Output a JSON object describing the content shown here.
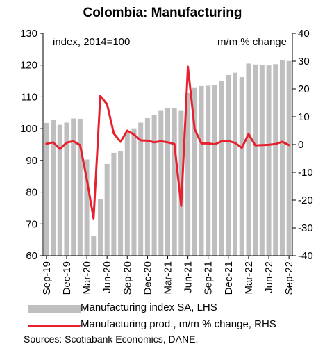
{
  "chart_data": {
    "type": "bar+line",
    "title": "Colombia: Manufacturing",
    "left_axis_label": "index, 2014=100",
    "right_axis_label": "m/m % change",
    "left_ylim": [
      60,
      130
    ],
    "left_ticks": [
      60,
      70,
      80,
      90,
      100,
      110,
      120,
      130
    ],
    "right_ylim": [
      -40,
      40
    ],
    "right_ticks": [
      -40,
      -30,
      -20,
      -10,
      0,
      10,
      20,
      30,
      40
    ],
    "x_tick_labels": [
      "Sep-19",
      "Dec-19",
      "Mar-20",
      "Jun-20",
      "Sep-20",
      "Dec-20",
      "Mar-21",
      "Jun-21",
      "Sep-21",
      "Dec-21",
      "Mar-22",
      "Jun-22",
      "Sep-22"
    ],
    "months": [
      "Sep-19",
      "Oct-19",
      "Nov-19",
      "Dec-19",
      "Jan-20",
      "Feb-20",
      "Mar-20",
      "Apr-20",
      "May-20",
      "Jun-20",
      "Jul-20",
      "Aug-20",
      "Sep-20",
      "Oct-20",
      "Nov-20",
      "Dec-20",
      "Jan-21",
      "Feb-21",
      "Mar-21",
      "Apr-21",
      "May-21",
      "Jun-21",
      "Jul-21",
      "Aug-21",
      "Sep-21",
      "Oct-21",
      "Nov-21",
      "Dec-21",
      "Jan-22",
      "Feb-22",
      "Mar-22",
      "Apr-22",
      "May-22",
      "Jun-22",
      "Jul-22",
      "Aug-22",
      "Sep-22"
    ],
    "series": [
      {
        "name": "Manufacturing index SA, LHS",
        "type": "bar",
        "axis": "left",
        "color": "#bfbfbf",
        "values": [
          101.8,
          102.8,
          101.2,
          101.9,
          103.2,
          103.1,
          90.3,
          66.2,
          77.8,
          88.9,
          92.4,
          92.9,
          98.6,
          100.1,
          101.9,
          103.3,
          104.3,
          105.6,
          106.4,
          106.6,
          105.6,
          111.2,
          113.0,
          113.4,
          113.5,
          113.6,
          115.1,
          116.9,
          117.6,
          116.2,
          120.5,
          120.2,
          120.0,
          119.9,
          120.3,
          121.5,
          121.3
        ]
      },
      {
        "name": "Manufacturing prod., m/m % change, RHS",
        "type": "line",
        "axis": "right",
        "color": "#e8202e",
        "values": [
          0.3,
          0.8,
          -1.6,
          0.7,
          1.2,
          -0.2,
          -12.5,
          -26.6,
          17.5,
          14.5,
          4.0,
          1.0,
          5.0,
          3.6,
          1.5,
          1.4,
          0.8,
          1.2,
          0.8,
          0.2,
          -22.1,
          28.0,
          5.5,
          0.4,
          0.4,
          0.1,
          1.2,
          1.3,
          0.6,
          -1.2,
          3.8,
          -0.3,
          -0.2,
          -0.1,
          0.2,
          1.0,
          -0.2
        ]
      }
    ],
    "grid": false
  },
  "legend": {
    "bar_label": "Manufacturing index SA, LHS",
    "line_label": "Manufacturing prod., m/m % change, RHS"
  },
  "source": "Sources: Scotiabank Economics, DANE."
}
